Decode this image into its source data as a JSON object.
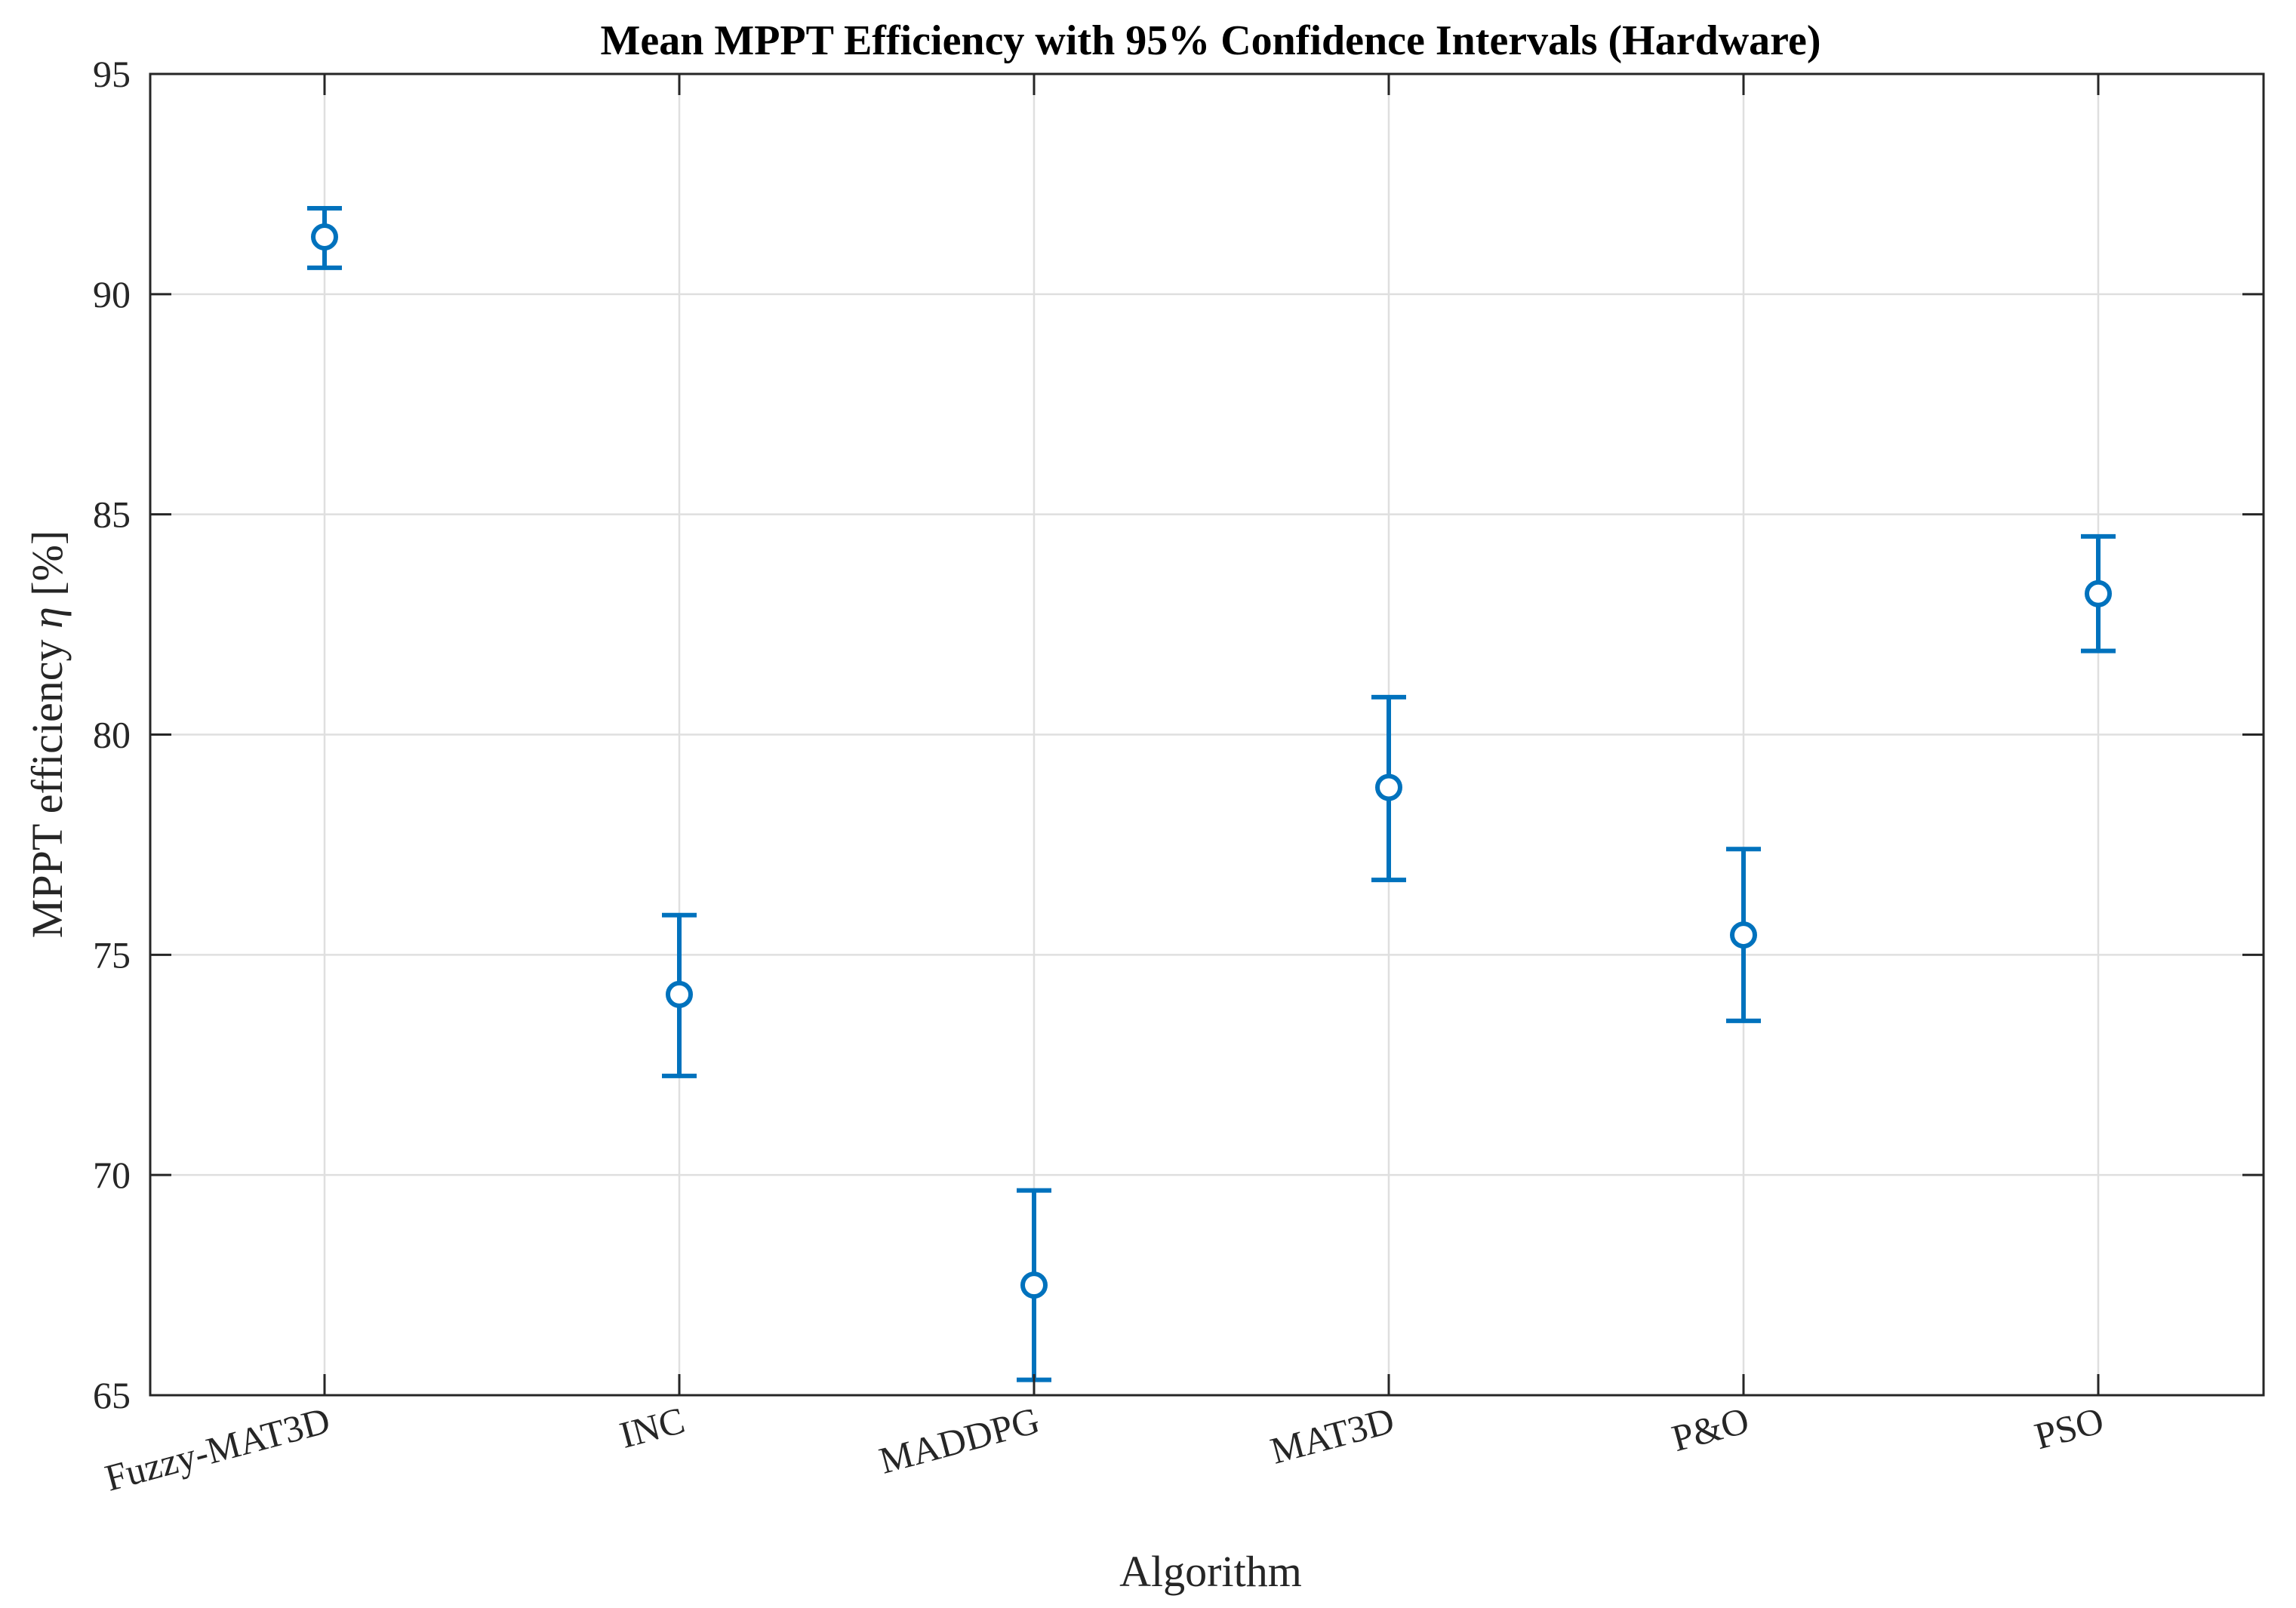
{
  "chart_data": {
    "type": "scatter",
    "title": "Mean MPPT Efficiency with 95% Confidence Intervals (Hardware)",
    "xlabel": "Algorithm",
    "ylabel_prefix": "MPPT efficiency ",
    "ylabel_symbol": "η",
    "ylabel_suffix": " [%]",
    "categories": [
      "Fuzzy-MAT3D",
      "INC",
      "MADDPG",
      "MAT3D",
      "P&O",
      "PSO"
    ],
    "series": [
      {
        "marker": "circle",
        "color": "#0072BD",
        "values": [
          91.3,
          74.1,
          67.5,
          78.8,
          75.45,
          83.2
        ],
        "ci_lower": [
          90.6,
          72.25,
          65.35,
          76.7,
          73.5,
          81.9
        ],
        "ci_upper": [
          91.95,
          75.9,
          69.65,
          80.85,
          77.4,
          84.5
        ]
      }
    ],
    "ylim": [
      65,
      95
    ],
    "yticks": [
      "65",
      "70",
      "75",
      "80",
      "85",
      "90",
      "95"
    ],
    "grid": true,
    "xtick_rotation_deg": 15
  }
}
